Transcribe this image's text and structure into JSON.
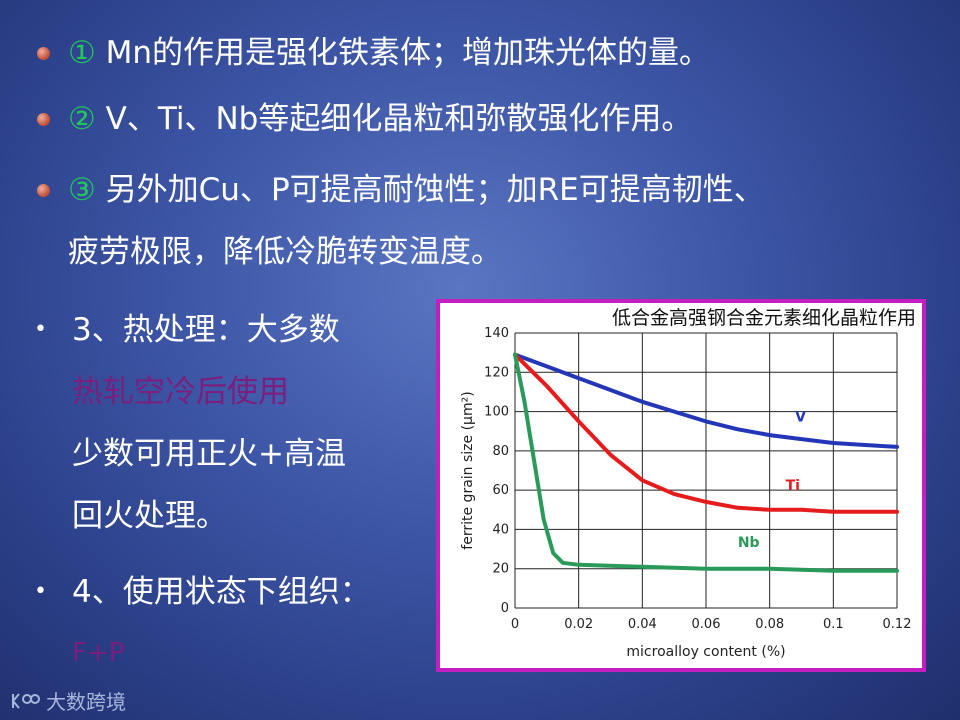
{
  "slide": {
    "bullets": [
      {
        "num": "①",
        "text": " Mn的作用是强化铁素体；增加珠光体的量。"
      },
      {
        "num": "②",
        "text": " V、Ti、Nb等起细化晶粒和弥散强化作用。"
      },
      {
        "num": "③",
        "text": " 另外加Cu、P可提高耐蚀性；加RE可提高韧性、",
        "cont": "疲劳极限，降低冷脆转变温度。"
      }
    ],
    "heat_treatment": {
      "bullet": "•",
      "lines": [
        "3、热处理：大多数",
        "热轧空冷后使用",
        "少数可用正火+高温",
        "回火处理。"
      ]
    },
    "usage_state": {
      "bullet": "•",
      "label": "4、使用状态下组织：",
      "value": "F+P"
    },
    "logo_text": "大数跨境",
    "colors": {
      "circled_number": "#22c55e",
      "magenta_text": "#7a1f7e",
      "frame": "#c21ec0"
    }
  },
  "chart_data": {
    "type": "line",
    "title": "低合金高强钢合金元素细化晶粒作用",
    "xlabel": "microalloy content (%)",
    "ylabel": "ferrite grain size (μm²)",
    "xlim": [
      0,
      0.12
    ],
    "ylim": [
      0,
      140
    ],
    "x_ticks": [
      "0",
      "0.02",
      "0.04",
      "0.06",
      "0.08",
      "0.1",
      "0.12"
    ],
    "y_ticks": [
      "0",
      "20",
      "40",
      "60",
      "80",
      "100",
      "120",
      "140"
    ],
    "grid": true,
    "series": [
      {
        "name": "V",
        "color": "#2336b8",
        "x": [
          0,
          0.01,
          0.02,
          0.03,
          0.04,
          0.05,
          0.06,
          0.07,
          0.08,
          0.09,
          0.1,
          0.11,
          0.12
        ],
        "y": [
          129,
          123,
          117,
          111,
          105,
          100,
          95,
          91,
          88,
          86,
          84,
          83,
          82
        ]
      },
      {
        "name": "Ti",
        "color": "#e61b1b",
        "x": [
          0,
          0.01,
          0.02,
          0.03,
          0.04,
          0.05,
          0.06,
          0.07,
          0.08,
          0.09,
          0.1,
          0.11,
          0.12
        ],
        "y": [
          129,
          113,
          95,
          78,
          65,
          58,
          54,
          51,
          50,
          50,
          49,
          49,
          49
        ]
      },
      {
        "name": "Nb",
        "color": "#2a9a5a",
        "x": [
          0,
          0.003,
          0.006,
          0.009,
          0.012,
          0.015,
          0.02,
          0.04,
          0.06,
          0.08,
          0.1,
          0.12
        ],
        "y": [
          129,
          105,
          75,
          45,
          28,
          23,
          22,
          21,
          20,
          20,
          19,
          19
        ]
      }
    ]
  }
}
